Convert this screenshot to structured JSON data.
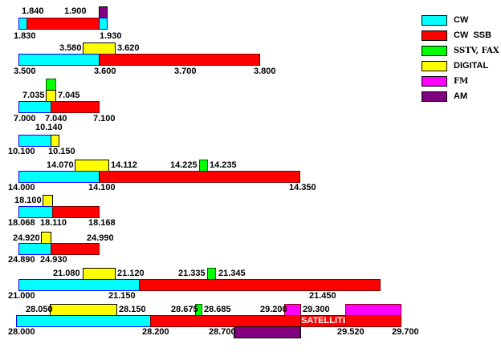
{
  "legend": [
    {
      "label": "CW",
      "color": "#00ffff"
    },
    {
      "label": "CW  SSB",
      "color": "#ff0000"
    },
    {
      "label": "SSTV, FAX",
      "color": "#00ff00"
    },
    {
      "label": "DIGITAL",
      "color": "#ffff00"
    },
    {
      "label": "FM",
      "color": "#ff00ff"
    },
    {
      "label": "AM",
      "color": "#800080"
    }
  ],
  "bands": {
    "b160": [
      "1.840",
      "1.900",
      "1.830",
      "1.930"
    ],
    "b80": [
      "3.580",
      "3.620",
      "3.500",
      "3.600",
      "3.700",
      "3.800"
    ],
    "b40": [
      "7.035",
      "7.045",
      "7.000",
      "7.040",
      "7.100"
    ],
    "b30": [
      "10.140",
      "10.100",
      "10.150"
    ],
    "b20": [
      "14.070",
      "14.112",
      "14.225",
      "14.235",
      "14.000",
      "14.100",
      "14.350"
    ],
    "b17": [
      "18.100",
      "18.068",
      "18.110",
      "18.168"
    ],
    "b12": [
      "24.920",
      "24.990",
      "24.890",
      "24.930"
    ],
    "b15": [
      "21.080",
      "21.120",
      "21.335",
      "21.345",
      "21.000",
      "21.150",
      "21.450"
    ],
    "b10": [
      "28.050",
      "28.150",
      "28.675",
      "28.685",
      "29.200",
      "29.300",
      "28.000",
      "28.200",
      "28.700",
      "29.520",
      "29.700"
    ],
    "satellite": "SATELLITE"
  }
}
